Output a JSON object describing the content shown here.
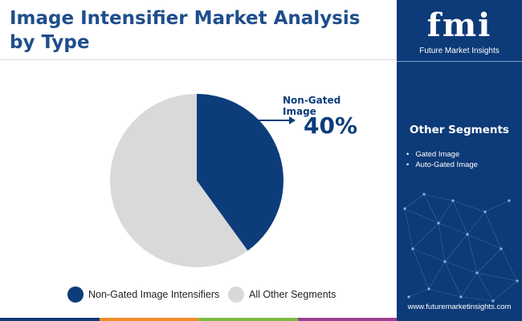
{
  "header": {
    "title": "Image Intensifier Market Analysis by Type"
  },
  "chart_data": {
    "type": "pie",
    "slices": [
      {
        "name": "Non-Gated Image Intensifiers",
        "value": 40,
        "color": "#0c3d7a"
      },
      {
        "name": "All Other Segments",
        "value": 60,
        "color": "#d9d9d9"
      }
    ],
    "start_angle": "12 o'clock",
    "direction": "clockwise",
    "callout": {
      "label": "Non-Gated Image",
      "value": "40%"
    },
    "legend_position": "bottom"
  },
  "panel": {
    "logo_mark": "fmi",
    "logo_text": "Future Market Insights",
    "segments_title": "Other Segments",
    "segments": [
      "Gated Image",
      "Auto-Gated Image"
    ],
    "website": "www.futuremarketinsights.com"
  },
  "colors": {
    "brand_blue": "#0d3a78",
    "title_blue": "#1f4e8c",
    "bottom_bar": [
      "#0d3a78",
      "#f28c28",
      "#7dbb42",
      "#9b3f91"
    ]
  }
}
